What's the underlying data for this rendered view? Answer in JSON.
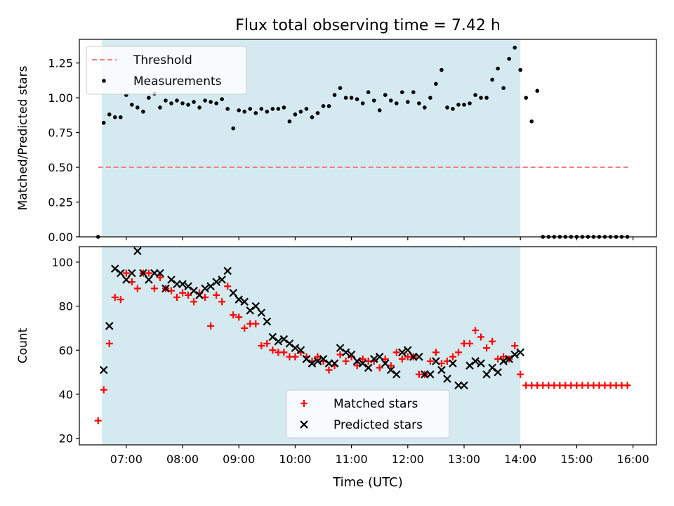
{
  "chart_data": [
    {
      "type": "scatter",
      "title": "Flux total observing time = 7.42 h",
      "xlabel": "",
      "ylabel": "Matched/Predicted stars",
      "ylim": [
        0,
        1.42
      ],
      "xlim": [
        "06:10",
        "16:25"
      ],
      "yticks": [
        "0.00",
        "0.25",
        "0.50",
        "0.75",
        "1.00",
        "1.25"
      ],
      "observing_window": [
        "06:34",
        "14:00"
      ],
      "window_color": "#d4eaf0",
      "legend_position": "upper left",
      "series": [
        {
          "name": "Threshold",
          "style": "dashed-line",
          "color": "#f08080",
          "x": [
            "06:30",
            "15:55"
          ],
          "y": [
            0.5,
            0.5
          ]
        },
        {
          "name": "Measurements",
          "style": "dot",
          "color": "#000000",
          "x": [
            "06:30",
            "06:36",
            "06:42",
            "06:48",
            "06:54",
            "07:00",
            "07:06",
            "07:12",
            "07:18",
            "07:24",
            "07:30",
            "07:36",
            "07:42",
            "07:48",
            "07:54",
            "08:00",
            "08:06",
            "08:12",
            "08:18",
            "08:24",
            "08:30",
            "08:36",
            "08:42",
            "08:48",
            "08:54",
            "09:00",
            "09:06",
            "09:12",
            "09:18",
            "09:24",
            "09:30",
            "09:36",
            "09:42",
            "09:48",
            "09:54",
            "10:00",
            "10:06",
            "10:12",
            "10:18",
            "10:24",
            "10:30",
            "10:36",
            "10:42",
            "10:48",
            "10:54",
            "11:00",
            "11:06",
            "11:12",
            "11:18",
            "11:24",
            "11:30",
            "11:36",
            "11:42",
            "11:48",
            "11:54",
            "12:00",
            "12:06",
            "12:12",
            "12:18",
            "12:24",
            "12:30",
            "12:36",
            "12:42",
            "12:48",
            "12:54",
            "13:00",
            "13:06",
            "13:12",
            "13:18",
            "13:24",
            "13:30",
            "13:36",
            "13:42",
            "13:48",
            "13:54",
            "14:00",
            "14:06",
            "14:12",
            "14:18",
            "14:24",
            "14:30",
            "14:36",
            "14:42",
            "14:48",
            "14:54",
            "15:00",
            "15:06",
            "15:12",
            "15:18",
            "15:24",
            "15:30",
            "15:36",
            "15:42",
            "15:48",
            "15:54"
          ],
          "y": [
            0.0,
            0.82,
            0.88,
            0.86,
            0.86,
            1.02,
            0.95,
            0.93,
            0.9,
            1.0,
            1.03,
            0.93,
            0.98,
            0.96,
            0.98,
            0.96,
            0.95,
            0.97,
            0.93,
            0.98,
            0.97,
            0.96,
            0.99,
            0.92,
            0.78,
            0.91,
            0.9,
            0.92,
            0.89,
            0.92,
            0.9,
            0.92,
            0.92,
            0.93,
            0.83,
            0.88,
            0.9,
            0.92,
            0.86,
            0.89,
            0.94,
            0.94,
            1.02,
            1.07,
            1.0,
            1.0,
            0.99,
            0.96,
            1.04,
            0.98,
            0.91,
            1.02,
            0.98,
            0.96,
            1.04,
            0.97,
            1.04,
            0.96,
            0.93,
            1.0,
            1.1,
            1.2,
            0.93,
            0.92,
            0.95,
            0.95,
            0.96,
            1.02,
            1.0,
            1.0,
            1.13,
            1.21,
            1.07,
            1.28,
            1.36,
            1.2,
            1.0,
            0.83,
            1.05,
            0.0,
            0.0,
            0.0,
            0.0,
            0.0,
            0.0,
            0.0,
            0.0,
            0.0,
            0.0,
            0.0,
            0.0,
            0.0,
            0.0,
            0.0,
            0.0
          ]
        }
      ]
    },
    {
      "type": "scatter",
      "title": "",
      "xlabel": "Time (UTC)",
      "ylabel": "Count",
      "ylim": [
        17,
        107
      ],
      "xlim": [
        "06:10",
        "16:25"
      ],
      "yticks": [
        "20",
        "40",
        "60",
        "80",
        "100"
      ],
      "xticks": [
        "07:00",
        "08:00",
        "09:00",
        "10:00",
        "11:00",
        "12:00",
        "13:00",
        "14:00",
        "15:00",
        "16:00"
      ],
      "observing_window": [
        "06:34",
        "14:00"
      ],
      "window_color": "#d4eaf0",
      "legend_position": "lower center",
      "series": [
        {
          "name": "Matched stars",
          "style": "plus",
          "color": "#ff0000",
          "x": [
            "06:30",
            "06:36",
            "06:42",
            "06:48",
            "06:54",
            "07:00",
            "07:06",
            "07:12",
            "07:18",
            "07:24",
            "07:30",
            "07:36",
            "07:42",
            "07:48",
            "07:54",
            "08:00",
            "08:06",
            "08:12",
            "08:18",
            "08:24",
            "08:30",
            "08:36",
            "08:42",
            "08:48",
            "08:54",
            "09:00",
            "09:06",
            "09:12",
            "09:18",
            "09:24",
            "09:30",
            "09:36",
            "09:42",
            "09:48",
            "09:54",
            "10:00",
            "10:06",
            "10:12",
            "10:18",
            "10:24",
            "10:30",
            "10:36",
            "10:42",
            "10:48",
            "10:54",
            "11:00",
            "11:06",
            "11:12",
            "11:18",
            "11:24",
            "11:30",
            "11:36",
            "11:42",
            "11:48",
            "11:54",
            "12:00",
            "12:06",
            "12:12",
            "12:18",
            "12:24",
            "12:30",
            "12:36",
            "12:42",
            "12:48",
            "12:54",
            "13:00",
            "13:06",
            "13:12",
            "13:18",
            "13:24",
            "13:30",
            "13:36",
            "13:42",
            "13:48",
            "13:54",
            "14:00",
            "14:06",
            "14:12",
            "14:18",
            "14:24",
            "14:30",
            "14:36",
            "14:42",
            "14:48",
            "14:54",
            "15:00",
            "15:06",
            "15:12",
            "15:18",
            "15:24",
            "15:30",
            "15:36",
            "15:42",
            "15:48",
            "15:54"
          ],
          "y": [
            28,
            42,
            63,
            84,
            83,
            95,
            91,
            88,
            95,
            95,
            88,
            93,
            88,
            87,
            84,
            86,
            85,
            82,
            86,
            84,
            71,
            85,
            82,
            89,
            76,
            75,
            70,
            72,
            72,
            62,
            63,
            60,
            59,
            59,
            57,
            57,
            59,
            57,
            55,
            57,
            55,
            51,
            53,
            58,
            55,
            57,
            53,
            56,
            55,
            55,
            52,
            56,
            53,
            59,
            56,
            57,
            57,
            49,
            49,
            55,
            59,
            54,
            55,
            57,
            59,
            63,
            63,
            69,
            66,
            61,
            64,
            56,
            57,
            56,
            62,
            49,
            44,
            44,
            44,
            44,
            44,
            44,
            44,
            44,
            44,
            44,
            44,
            44,
            44,
            44,
            44,
            44,
            44,
            44,
            44
          ]
        },
        {
          "name": "Predicted stars",
          "style": "x",
          "color": "#000000",
          "x": [
            "06:36",
            "06:42",
            "06:48",
            "06:54",
            "07:00",
            "07:06",
            "07:12",
            "07:18",
            "07:24",
            "07:30",
            "07:36",
            "07:42",
            "07:48",
            "07:54",
            "08:00",
            "08:06",
            "08:12",
            "08:18",
            "08:24",
            "08:30",
            "08:36",
            "08:42",
            "08:48",
            "08:54",
            "09:00",
            "09:06",
            "09:12",
            "09:18",
            "09:24",
            "09:30",
            "09:36",
            "09:42",
            "09:48",
            "09:54",
            "10:00",
            "10:06",
            "10:12",
            "10:18",
            "10:24",
            "10:30",
            "10:36",
            "10:42",
            "10:48",
            "10:54",
            "11:00",
            "11:06",
            "11:12",
            "11:18",
            "11:24",
            "11:30",
            "11:36",
            "11:42",
            "11:48",
            "11:54",
            "12:00",
            "12:06",
            "12:12",
            "12:18",
            "12:24",
            "12:30",
            "12:36",
            "12:42",
            "12:48",
            "12:54",
            "13:00",
            "13:06",
            "13:12",
            "13:18",
            "13:24",
            "13:30",
            "13:36",
            "13:42",
            "13:48",
            "13:54",
            "14:00"
          ],
          "y": [
            51,
            71,
            97,
            95,
            92,
            95,
            105,
            95,
            92,
            95,
            95,
            88,
            92,
            90,
            90,
            89,
            87,
            85,
            88,
            89,
            91,
            92,
            96,
            86,
            83,
            82,
            78,
            80,
            77,
            73,
            66,
            64,
            65,
            63,
            61,
            60,
            56,
            54,
            55,
            56,
            54,
            54,
            61,
            59,
            58,
            55,
            54,
            52,
            56,
            57,
            54,
            51,
            49,
            59,
            60,
            57,
            57,
            49,
            49,
            55,
            51,
            47,
            54,
            44,
            44,
            53,
            55,
            54,
            49,
            52,
            50,
            55,
            56,
            58,
            59
          ]
        }
      ]
    }
  ]
}
